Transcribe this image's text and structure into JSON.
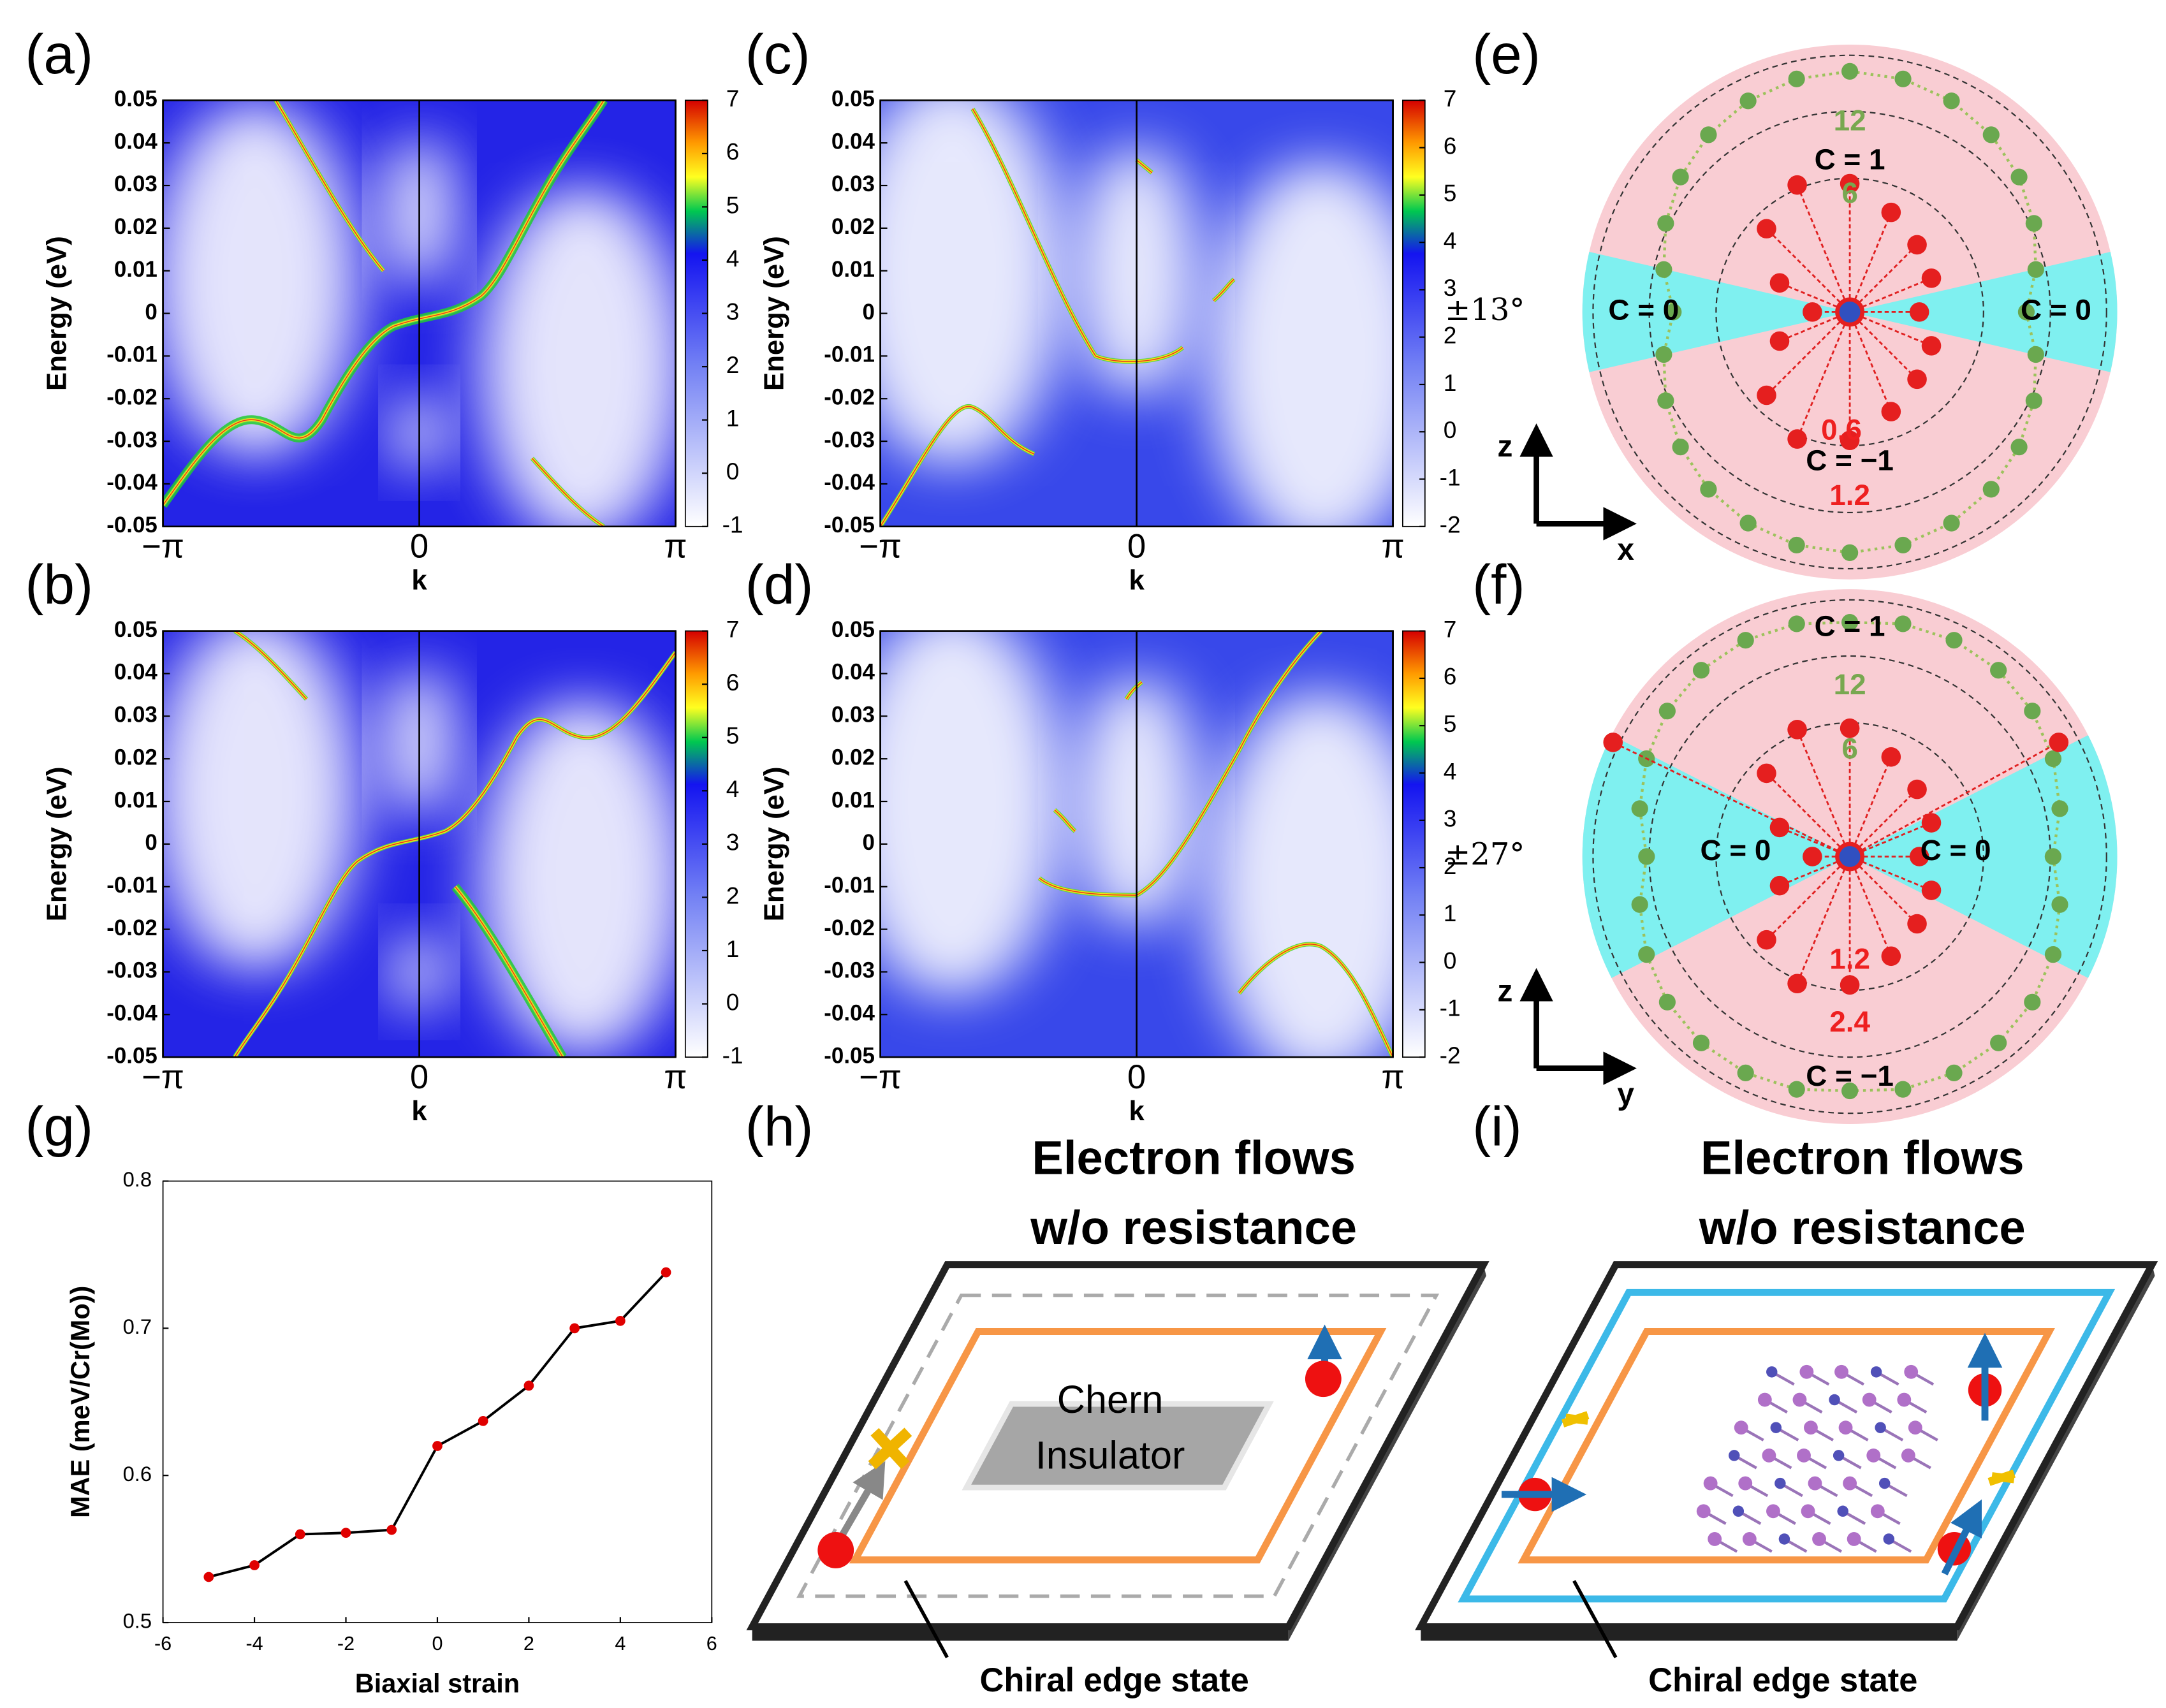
{
  "band_axes": {
    "ylabel": "Energy (eV)",
    "xlabel": "k",
    "ylim": [
      -0.05,
      0.05
    ],
    "yticks": [
      0.05,
      0.04,
      0.03,
      0.02,
      0.01,
      0,
      -0.01,
      -0.02,
      -0.03,
      -0.04,
      -0.05
    ],
    "xlim": [
      -3.14159,
      3.14159
    ],
    "xticks": [
      {
        "value": -3.14159,
        "label": "−π"
      },
      0,
      {
        "value": 3.14159,
        "label": "π"
      }
    ]
  },
  "band_panels": [
    {
      "label": "(a)",
      "colorbar_lim": [
        -1,
        7
      ],
      "colorbar_ticks": [
        7,
        6,
        5,
        4,
        3,
        2,
        1,
        0,
        -1
      ]
    },
    {
      "label": "(b)",
      "colorbar_lim": [
        -1,
        7
      ],
      "colorbar_ticks": [
        7,
        6,
        5,
        4,
        3,
        2,
        1,
        0,
        -1
      ]
    },
    {
      "label": "(c)",
      "colorbar_lim": [
        -2,
        7
      ],
      "colorbar_ticks": [
        7,
        6,
        5,
        4,
        3,
        2,
        1,
        0,
        -1,
        -2
      ]
    },
    {
      "label": "(d)",
      "colorbar_lim": [
        -2,
        7
      ],
      "colorbar_ticks": [
        7,
        6,
        5,
        4,
        3,
        2,
        1,
        0,
        -1,
        -2
      ]
    }
  ],
  "polar_panels": [
    {
      "label": "(e)",
      "angle": {
        "value": 13,
        "label": "±13°"
      },
      "texts": [
        "12",
        "C = 1",
        "6",
        "C = 0",
        "C = 0",
        "0.6",
        "C = −1",
        "1.2"
      ],
      "axes": [
        "z",
        "x"
      ]
    },
    {
      "label": "(f)",
      "angle": {
        "value": 27,
        "label": "±27°"
      },
      "texts": [
        "C = 1",
        "12",
        "6",
        "C = 0",
        "C = 0",
        "1.2",
        "2.4",
        "C = −1"
      ],
      "axes": [
        "z",
        "y"
      ]
    }
  ],
  "chart_data": {
    "type": "line",
    "label": "(g)",
    "x_label": "Biaxial strain",
    "y_label": "MAE (meV/Cr(Mo))",
    "x": [
      -5,
      -4,
      -3,
      -2,
      -1,
      0,
      1,
      2,
      3,
      4,
      5
    ],
    "values": [
      0.531,
      0.539,
      0.56,
      0.561,
      0.563,
      0.62,
      0.637,
      0.661,
      0.7,
      0.705,
      0.738
    ],
    "xlim": [
      -6,
      6
    ],
    "xticks": [
      -6,
      -4,
      -2,
      0,
      2,
      4,
      6
    ],
    "ylim": [
      0.5,
      0.8
    ],
    "yticks": [
      0.5,
      0.6,
      0.7,
      0.8
    ],
    "color": "#000000",
    "marker_color": "#e00000"
  },
  "schematics": [
    {
      "label": "(h)",
      "title_lines": [
        "Electron flows",
        "w/o resistance"
      ],
      "center_lines": [
        "Chern",
        "Insulator"
      ],
      "edge_label": "Chiral edge state"
    },
    {
      "label": "(i)",
      "title_lines": [
        "Electron flows",
        "w/o resistance"
      ],
      "edge_label": "Chiral edge state"
    }
  ]
}
